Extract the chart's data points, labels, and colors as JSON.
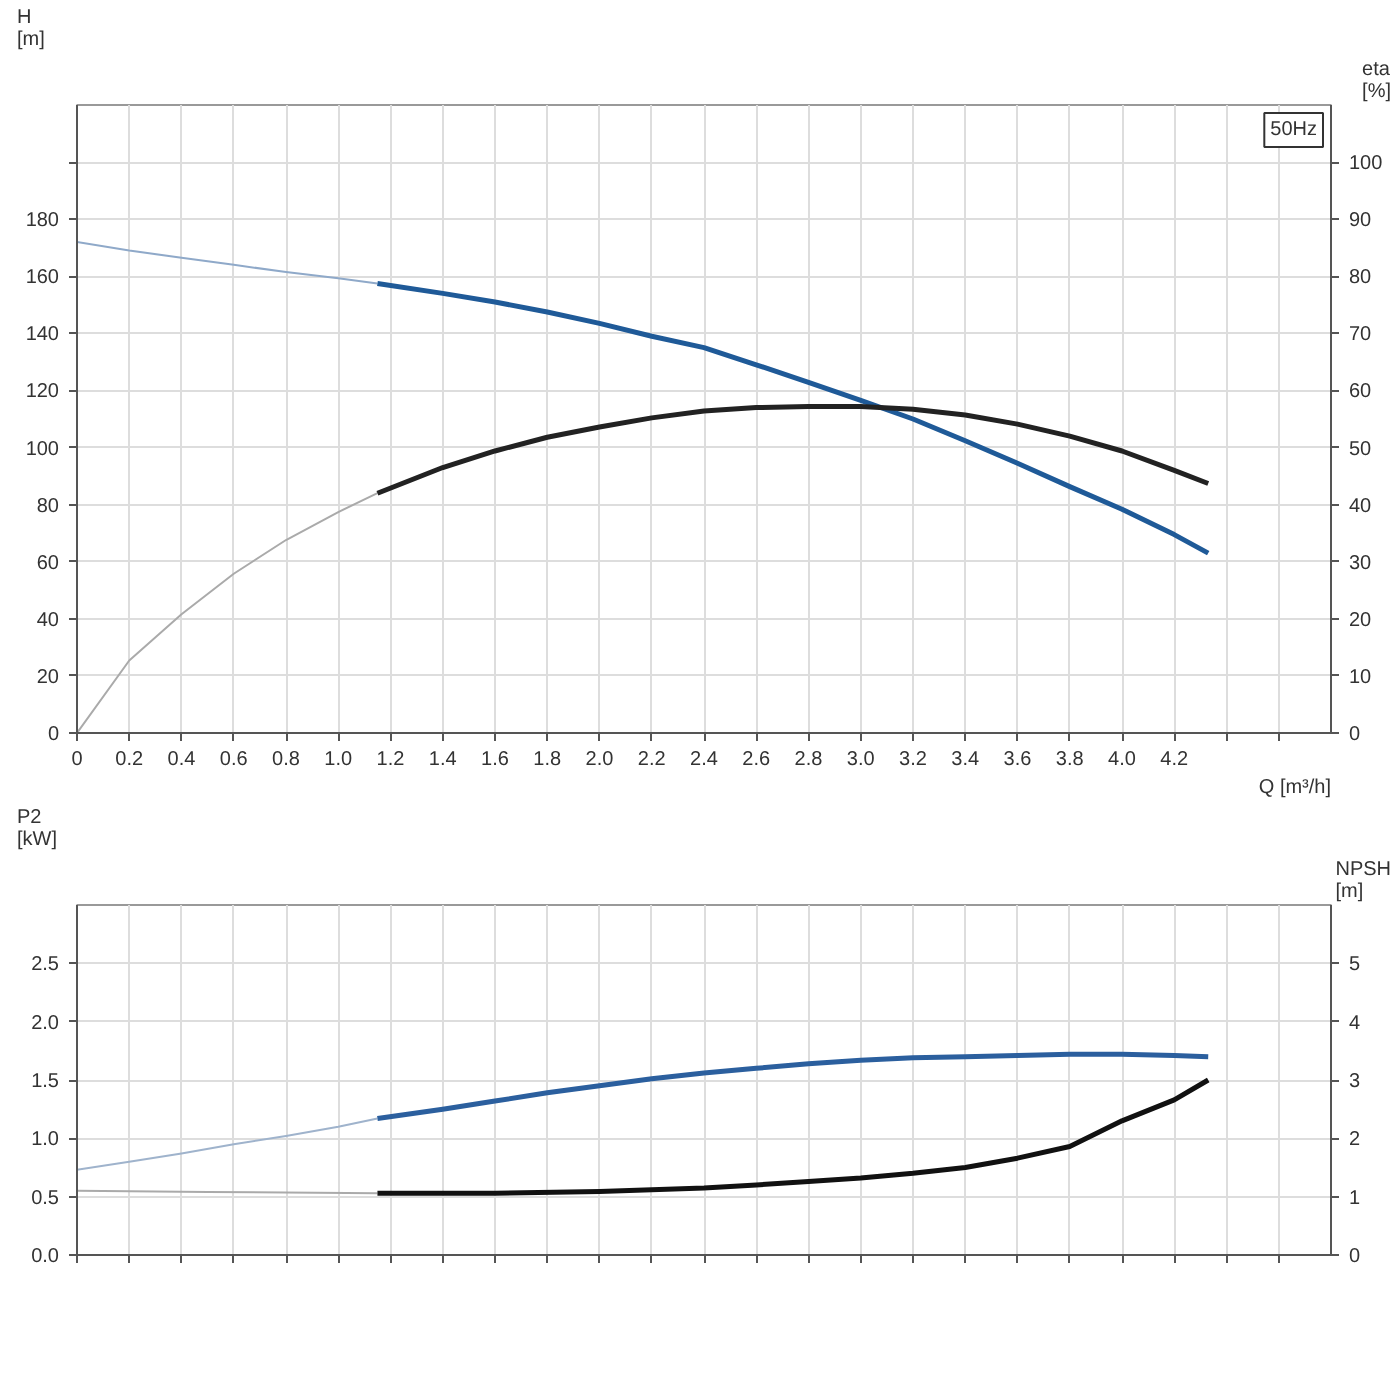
{
  "chart_data": [
    {
      "type": "line",
      "xlabel": "Q [m³/h]",
      "ylabel": "H [m]",
      "y2label": "eta [%]",
      "annotations": [
        "50Hz"
      ],
      "grid": true,
      "xlim": [
        0,
        4.8
      ],
      "xticks": [
        0,
        0.2,
        0.4,
        0.6,
        0.8,
        {
          "value": 1,
          "label": "1.0"
        },
        1.2,
        1.4,
        1.6,
        1.8,
        {
          "value": 2,
          "label": "2.0"
        },
        2.2,
        2.4,
        2.6,
        2.8,
        {
          "value": 3,
          "label": "3.0"
        },
        3.2,
        3.4,
        3.6,
        3.8,
        {
          "value": 4,
          "label": "4.0"
        },
        4.2,
        {
          "value": 4.4,
          "label": null
        },
        {
          "value": 4.6,
          "label": null
        }
      ],
      "ylim": [
        0,
        220
      ],
      "yticks": [
        0,
        20,
        40,
        60,
        80,
        100,
        120,
        140,
        160,
        180,
        {
          "value": 200,
          "label": null
        }
      ],
      "y2lim": [
        0,
        110
      ],
      "y2ticks": [
        0,
        10,
        20,
        30,
        40,
        50,
        60,
        70,
        80,
        90,
        100
      ],
      "series": [
        {
          "color": "#8fa9c9",
          "x": [
            0,
            0.2,
            0.4,
            0.6,
            0.8,
            1.0,
            1.15
          ],
          "values": [
            172,
            169,
            166.5,
            164,
            161.5,
            159.3,
            157.5
          ]
        },
        {
          "color": "#1f5a98",
          "x": [
            1.15,
            1.4,
            1.6,
            1.8,
            2.0,
            2.2,
            2.4,
            2.6,
            2.8,
            3.0,
            3.2,
            3.4,
            3.6,
            3.8,
            4.0,
            4.2,
            4.33
          ],
          "values": [
            157.5,
            154,
            151,
            147.5,
            143.5,
            139,
            135,
            129,
            122.8,
            116.5,
            110,
            102.4,
            94.5,
            86.3,
            78.4,
            69.5,
            63
          ]
        },
        {
          "color": "#aaaaaa",
          "axis": "y2",
          "x": [
            0,
            0.2,
            0.4,
            0.6,
            0.8,
            1.0,
            1.15
          ],
          "values": [
            0,
            12.7,
            20.8,
            27.9,
            33.8,
            38.7,
            42
          ]
        },
        {
          "color": "#222222",
          "axis": "y2",
          "x": [
            1.15,
            1.4,
            1.6,
            1.8,
            2.0,
            2.2,
            2.4,
            2.6,
            2.8,
            3.0,
            3.2,
            3.4,
            3.6,
            3.8,
            4.0,
            4.2,
            4.33
          ],
          "values": [
            42,
            46.5,
            49.4,
            51.8,
            53.6,
            55.2,
            56.4,
            57,
            57.2,
            57.2,
            56.7,
            55.7,
            54.1,
            52,
            49.4,
            46,
            43.7
          ]
        }
      ]
    },
    {
      "type": "line",
      "ylabel": "P2 [kW]",
      "y2label": "NPSH [m]",
      "grid": true,
      "tick_labels": "y",
      "xlim": [
        0,
        4.8
      ],
      "xticks": [
        0,
        0.2,
        0.4,
        0.6,
        0.8,
        1,
        1.2,
        1.4,
        1.6,
        1.8,
        2,
        2.2,
        2.4,
        2.6,
        2.8,
        3,
        3.2,
        3.4,
        3.6,
        3.8,
        4,
        4.2,
        4.4,
        4.6
      ],
      "ylim": [
        0,
        3
      ],
      "yticks": [
        {
          "value": 0,
          "label": "0.0"
        },
        0.5,
        {
          "value": 1,
          "label": "1.0"
        },
        1.5,
        {
          "value": 2,
          "label": "2.0"
        },
        2.5
      ],
      "y2lim": [
        0,
        6
      ],
      "y2ticks": [
        0,
        1,
        2,
        3,
        4,
        5
      ],
      "series": [
        {
          "color": "#9fb3cc",
          "x": [
            0,
            0.2,
            0.4,
            0.6,
            0.8,
            1.0,
            1.15
          ],
          "values": [
            0.73,
            0.8,
            0.87,
            0.95,
            1.02,
            1.1,
            1.17
          ]
        },
        {
          "color": "#2b5f9e",
          "x": [
            1.15,
            1.4,
            1.6,
            1.8,
            2.0,
            2.2,
            2.4,
            2.6,
            2.8,
            3.0,
            3.2,
            3.4,
            3.6,
            3.8,
            4.0,
            4.2,
            4.33
          ],
          "values": [
            1.17,
            1.25,
            1.32,
            1.39,
            1.45,
            1.51,
            1.56,
            1.6,
            1.64,
            1.67,
            1.69,
            1.7,
            1.71,
            1.72,
            1.72,
            1.71,
            1.7
          ]
        },
        {
          "color": "#aaaaaa",
          "axis": "y2",
          "x": [
            0,
            0.5,
            1.15
          ],
          "values": [
            1.1,
            1.08,
            1.06
          ]
        },
        {
          "color": "#111111",
          "axis": "y2",
          "x": [
            1.15,
            1.6,
            2.0,
            2.4,
            2.6,
            2.8,
            3.0,
            3.2,
            3.4,
            3.6,
            3.8,
            4.0,
            4.2,
            4.33
          ],
          "values": [
            1.06,
            1.06,
            1.09,
            1.15,
            1.2,
            1.26,
            1.32,
            1.4,
            1.5,
            1.66,
            1.86,
            2.3,
            2.66,
            3.0
          ]
        }
      ]
    }
  ]
}
